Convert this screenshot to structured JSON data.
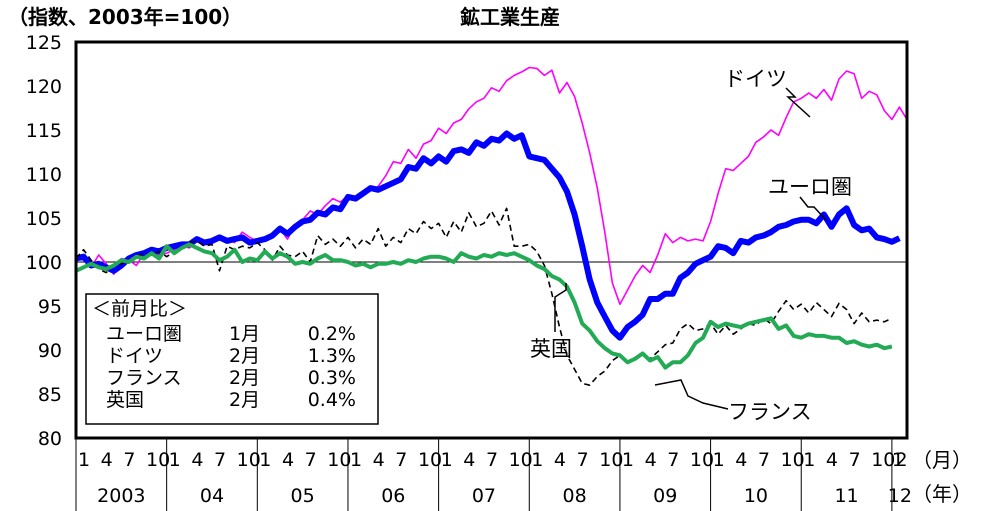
{
  "chart_data": {
    "type": "line",
    "title": "鉱工業生産",
    "ylabel": "（指数、2003年=100）",
    "x_unit": "（月）",
    "year_unit": "（年）",
    "ylim": [
      80,
      125
    ],
    "yticks": [
      80,
      85,
      90,
      95,
      100,
      105,
      110,
      115,
      120,
      125
    ],
    "reference_line": 100,
    "month_tick_labels": [
      "1",
      "4",
      "7",
      "10"
    ],
    "final_month_label": "2",
    "years": [
      "2003",
      "04",
      "05",
      "06",
      "07",
      "08",
      "09",
      "10",
      "11",
      "12"
    ],
    "x_start": "2003-01",
    "series": [
      {
        "name": "ドイツ",
        "color": "#ff00ff",
        "width": 1.6,
        "dash": "",
        "values": [
          100.2,
          100.6,
          99.4,
          100.8,
          99.8,
          98.6,
          100.4,
          100.2,
          99.6,
          101.0,
          101.2,
          100.8,
          101.0,
          101.4,
          101.8,
          101.6,
          102.4,
          102.4,
          102.2,
          103.0,
          102.6,
          102.2,
          103.4,
          102.8,
          102.4,
          102.6,
          103.2,
          103.8,
          102.6,
          104.2,
          104.8,
          105.8,
          105.4,
          106.4,
          107.2,
          106.8,
          107.6,
          107.4,
          107.8,
          108.2,
          108.6,
          109.8,
          111.4,
          111.2,
          112.8,
          111.8,
          113.4,
          113.8,
          115.2,
          114.6,
          115.8,
          116.2,
          117.4,
          118.2,
          118.6,
          119.8,
          119.4,
          120.6,
          121.2,
          121.6,
          122.1,
          122.0,
          121.2,
          121.8,
          119.2,
          120.4,
          118.8,
          115.8,
          112.4,
          108.4,
          103.4,
          97.6,
          95.2,
          96.8,
          98.4,
          99.6,
          98.8,
          100.8,
          103.2,
          102.2,
          102.8,
          102.4,
          102.6,
          102.4,
          104.6,
          107.8,
          110.6,
          110.4,
          111.2,
          112.0,
          113.6,
          114.2,
          115.0,
          114.4,
          116.4,
          118.2,
          118.6,
          119.2,
          118.6,
          119.6,
          118.4,
          120.8,
          121.7,
          121.4,
          118.6,
          119.4,
          119.0,
          117.2,
          116.2,
          117.6,
          116.2
        ]
      },
      {
        "name": "ユーロ圏",
        "color": "#0000ff",
        "width": 6,
        "dash": "",
        "values": [
          100.4,
          100.6,
          99.6,
          99.8,
          99.4,
          99.0,
          99.6,
          100.4,
          100.8,
          101.0,
          101.4,
          101.2,
          101.6,
          101.8,
          102.0,
          102.0,
          102.6,
          102.2,
          102.4,
          102.8,
          102.4,
          102.6,
          102.8,
          102.2,
          102.4,
          102.6,
          103.0,
          103.8,
          103.2,
          104.0,
          104.6,
          104.8,
          105.6,
          105.4,
          106.2,
          106.0,
          107.4,
          107.2,
          107.8,
          108.4,
          108.2,
          108.6,
          109.0,
          109.4,
          110.8,
          110.6,
          111.8,
          111.2,
          112.0,
          111.4,
          112.6,
          112.8,
          112.4,
          113.6,
          113.2,
          114.0,
          113.8,
          114.6,
          114.0,
          114.4,
          112.0,
          111.8,
          111.6,
          110.6,
          109.6,
          108.0,
          105.4,
          101.8,
          98.0,
          95.4,
          93.8,
          92.2,
          91.4,
          92.6,
          93.2,
          94.0,
          95.8,
          95.8,
          96.4,
          96.4,
          98.2,
          98.8,
          99.8,
          100.2,
          100.6,
          101.8,
          101.6,
          101.0,
          102.4,
          102.2,
          102.8,
          103.0,
          103.4,
          104.0,
          104.2,
          104.6,
          104.8,
          104.8,
          104.4,
          105.4,
          104.0,
          105.4,
          106.1,
          104.2,
          103.6,
          103.8,
          102.8,
          102.6,
          102.3,
          102.7
        ]
      },
      {
        "name": "フランス",
        "color": "#000000",
        "width": 1.6,
        "dash": "6,4",
        "values": [
          100.4,
          101.4,
          100.2,
          99.2,
          98.8,
          99.6,
          99.8,
          100.2,
          100.6,
          101.0,
          100.8,
          101.2,
          100.6,
          101.2,
          101.6,
          102.2,
          102.4,
          101.8,
          102.0,
          99.0,
          101.8,
          101.4,
          101.8,
          101.6,
          102.2,
          101.4,
          100.2,
          101.8,
          100.8,
          100.6,
          101.2,
          100.0,
          103.0,
          102.0,
          102.6,
          101.8,
          102.8,
          101.6,
          102.6,
          102.0,
          103.8,
          101.8,
          102.8,
          102.2,
          103.8,
          103.2,
          104.6,
          103.8,
          104.4,
          102.8,
          104.6,
          103.4,
          105.6,
          104.0,
          104.4,
          105.8,
          104.2,
          106.1,
          101.8,
          101.8,
          102.0,
          101.2,
          99.6,
          96.4,
          92.6,
          89.4,
          87.8,
          86.2,
          86.0,
          87.0,
          87.6,
          88.8,
          89.4,
          88.8,
          89.0,
          89.6,
          89.0,
          89.8,
          90.6,
          90.8,
          92.4,
          93.0,
          92.2,
          92.4,
          93.0,
          91.8,
          92.8,
          91.8,
          92.4,
          93.0,
          92.8,
          93.6,
          93.0,
          94.4,
          95.6,
          94.6,
          95.2,
          94.2,
          95.4,
          94.6,
          93.8,
          95.3,
          94.6,
          93.0,
          94.2,
          93.2,
          93.4,
          93.2,
          93.6
        ]
      },
      {
        "name": "英国",
        "color": "#22aa55",
        "width": 4,
        "dash": "",
        "values": [
          99.0,
          99.4,
          99.8,
          99.4,
          99.2,
          99.6,
          100.2,
          100.0,
          100.6,
          100.4,
          101.0,
          100.4,
          101.8,
          101.0,
          101.6,
          102.0,
          101.6,
          101.2,
          101.0,
          100.2,
          100.6,
          101.4,
          100.0,
          100.4,
          100.2,
          101.2,
          100.4,
          101.0,
          100.6,
          99.8,
          100.0,
          99.8,
          100.4,
          100.8,
          100.2,
          100.2,
          100.0,
          99.6,
          99.8,
          99.4,
          99.8,
          99.8,
          100.0,
          99.8,
          100.2,
          100.0,
          100.4,
          100.6,
          100.6,
          100.4,
          100.0,
          101.0,
          100.6,
          100.4,
          100.8,
          100.6,
          101.0,
          100.8,
          101.0,
          100.6,
          100.2,
          99.6,
          99.2,
          98.4,
          98.0,
          97.2,
          95.4,
          93.0,
          92.2,
          91.0,
          90.2,
          89.6,
          89.4,
          88.6,
          89.0,
          89.6,
          88.8,
          89.2,
          88.0,
          88.6,
          88.6,
          89.4,
          90.8,
          91.4,
          93.2,
          92.6,
          93.0,
          92.8,
          92.6,
          93.0,
          93.2,
          93.4,
          93.6,
          92.4,
          92.8,
          91.6,
          91.4,
          91.8,
          91.6,
          91.6,
          91.4,
          91.4,
          90.8,
          91.0,
          90.6,
          90.4,
          90.6,
          90.2,
          90.4
        ]
      }
    ],
    "series_labels": [
      "ドイツ",
      "ユーロ圏",
      "英国",
      "フランス"
    ],
    "mom_box": {
      "title": "＜前月比＞",
      "rows": [
        {
          "name": "ユーロ圏",
          "month": "1月",
          "value": "0.2%"
        },
        {
          "name": "ドイツ",
          "month": "2月",
          "value": "1.3%"
        },
        {
          "name": "フランス",
          "month": "2月",
          "value": "0.3%"
        },
        {
          "name": "英国",
          "month": "2月",
          "value": "0.4%"
        }
      ]
    }
  }
}
